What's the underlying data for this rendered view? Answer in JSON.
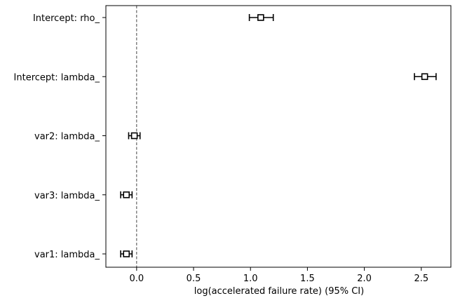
{
  "chart_data": {
    "type": "scatter",
    "title": "",
    "xlabel": "log(accelerated failure rate) (95% CI)",
    "ylabel": "",
    "xlim": [
      -0.27,
      2.76
    ],
    "xticks": [
      0.0,
      0.5,
      1.0,
      1.5,
      2.0,
      2.5
    ],
    "xtick_labels": [
      "0.0",
      "0.5",
      "1.0",
      "1.5",
      "2.0",
      "2.5"
    ],
    "reference_line_x": 0,
    "grid": false,
    "marker": "square",
    "colors": {
      "marker": "#000000",
      "reference_line": "#444444",
      "axes": "#000000"
    },
    "points": [
      {
        "label": "Intercept: rho_",
        "estimate": 1.09,
        "ci_lower": 0.99,
        "ci_upper": 1.2
      },
      {
        "label": "Intercept: lambda_",
        "estimate": 2.53,
        "ci_lower": 2.44,
        "ci_upper": 2.63
      },
      {
        "label": "var2: lambda_",
        "estimate": -0.02,
        "ci_lower": -0.07,
        "ci_upper": 0.03
      },
      {
        "label": "var3: lambda_",
        "estimate": -0.09,
        "ci_lower": -0.14,
        "ci_upper": -0.04
      },
      {
        "label": "var1: lambda_",
        "estimate": -0.09,
        "ci_lower": -0.14,
        "ci_upper": -0.04
      }
    ]
  }
}
